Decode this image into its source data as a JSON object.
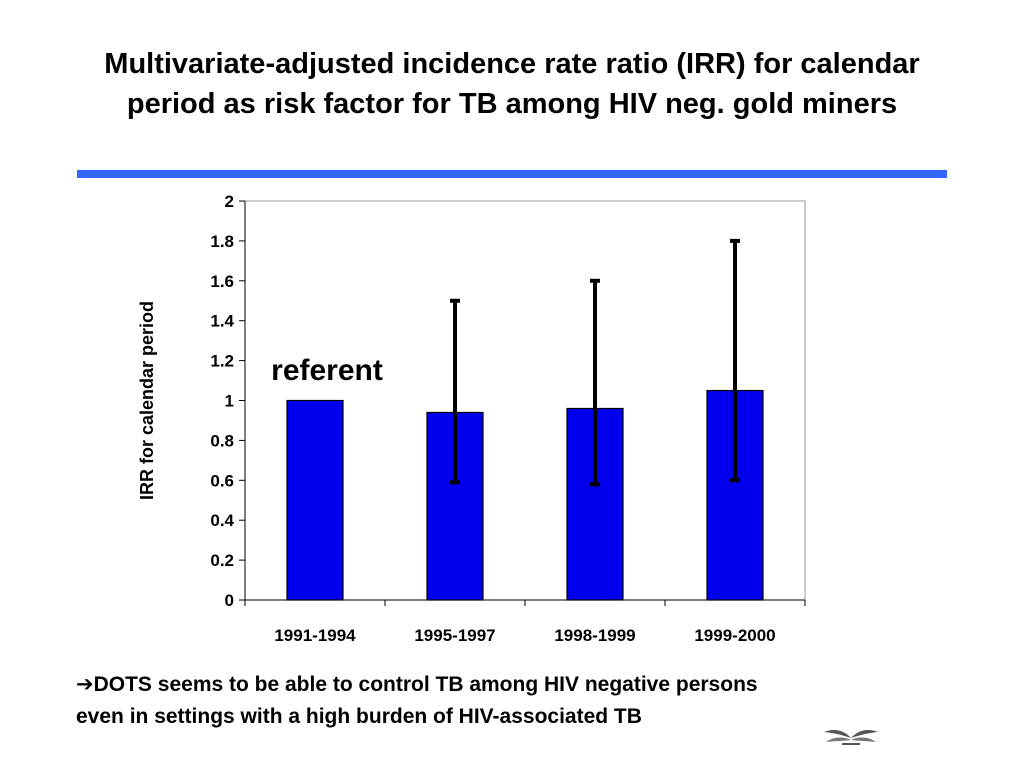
{
  "slide": {
    "title_lines": [
      "Multivariate-adjusted incidence rate ratio (IRR) for calendar",
      "period as risk factor for TB among HIV neg. gold miners"
    ],
    "footnote": {
      "arrow": "➔",
      "line1": "DOTS seems to be able to control TB among HIV negative persons",
      "line2": "even in settings with a high burden of HIV-associated TB"
    },
    "colors": {
      "rule": "#3366ff",
      "bar_fill": "#0000ee",
      "bar_stroke": "#000000",
      "error_bar": "#000000"
    },
    "logo_icon": "laurel-logo-icon"
  },
  "chart_data": {
    "type": "bar",
    "categories": [
      "1991-1994",
      "1995-1997",
      "1998-1999",
      "1999-2000"
    ],
    "values": [
      1.0,
      0.94,
      0.96,
      1.05
    ],
    "error_low": [
      null,
      0.59,
      0.58,
      0.6
    ],
    "error_high": [
      null,
      1.5,
      1.6,
      1.8
    ],
    "ylabel": "IRR for calendar period",
    "xlabel": "",
    "ylim": [
      0,
      2
    ],
    "yticks": [
      "0",
      "0.2",
      "0.4",
      "0.6",
      "0.8",
      "1",
      "1.2",
      "1.4",
      "1.6",
      "1.8",
      "2"
    ],
    "annotation": "referent",
    "grid": false,
    "legend": "none"
  }
}
